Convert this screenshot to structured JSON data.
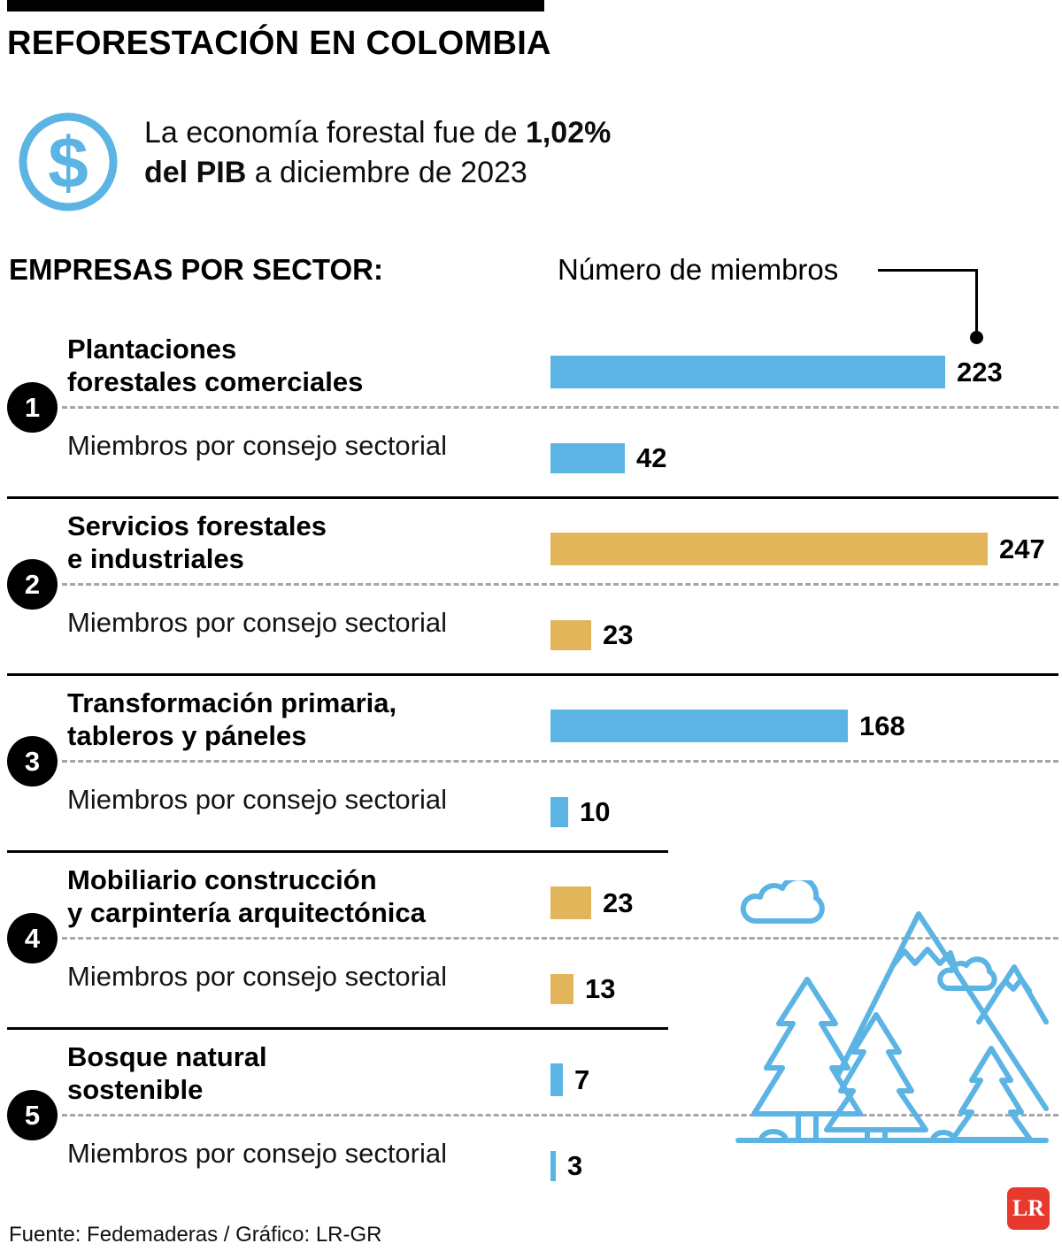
{
  "colors": {
    "blue": "#5BB4E4",
    "gold": "#E2B55A",
    "ink": "#000000",
    "logo_red": "#E8392E"
  },
  "icons": {
    "intro_icon": "dollar-sign-circle",
    "decoration": "forest-mountains-clouds-line-art"
  },
  "header": {
    "title": "REFORESTACIÓN EN COLOMBIA"
  },
  "intro": {
    "line1_normal": "La economía forestal fue de",
    "line1_bold": "1,02%",
    "line2_bold": "del PIB",
    "line2_normal": "a diciembre de 2023"
  },
  "chart_data": {
    "type": "bar",
    "orientation": "horizontal",
    "header_left": "EMPRESAS POR SECTOR:",
    "value_pointer_label": "Número de miembros",
    "xlim": [
      0,
      250
    ],
    "grid": false,
    "categories": [
      "Plantaciones forestales comerciales",
      "Servicios forestales e industriales",
      "Transformación primaria, tableros y páneles",
      "Mobiliario construcción y carpintería arquitectónica",
      "Bosque natural sostenible"
    ],
    "series": [
      {
        "name": "Número de miembros",
        "values": [
          223,
          247,
          168,
          23,
          7
        ]
      },
      {
        "name": "Miembros por consejo sectorial",
        "values": [
          42,
          23,
          10,
          13,
          3
        ]
      }
    ],
    "sectors": [
      {
        "number": "1",
        "name_line1": "Plantaciones",
        "name_line2": "forestales comerciales",
        "members": 223,
        "council_label": "Miembros por consejo sectorial",
        "council_members": 42,
        "color": "blue"
      },
      {
        "number": "2",
        "name_line1": "Servicios forestales",
        "name_line2": "e industriales",
        "members": 247,
        "council_label": "Miembros por consejo sectorial",
        "council_members": 23,
        "color": "gold"
      },
      {
        "number": "3",
        "name_line1": "Transformación primaria,",
        "name_line2": "tableros y páneles",
        "members": 168,
        "council_label": "Miembros por consejo sectorial",
        "council_members": 10,
        "color": "blue"
      },
      {
        "number": "4",
        "name_line1": "Mobiliario construcción",
        "name_line2": "y carpintería arquitectónica",
        "members": 23,
        "council_label": "Miembros por consejo sectorial",
        "council_members": 13,
        "color": "gold"
      },
      {
        "number": "5",
        "name_line1": "Bosque natural",
        "name_line2": "sostenible",
        "members": 7,
        "council_label": "Miembros por consejo sectorial",
        "council_members": 3,
        "color": "blue"
      }
    ]
  },
  "footer": {
    "source": "Fuente: Fedemaderas / Gráfico: LR-GR",
    "logo_text": "LR"
  }
}
